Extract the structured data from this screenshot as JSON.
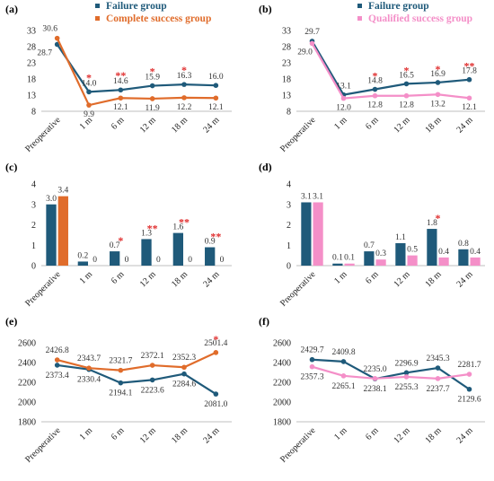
{
  "colors": {
    "failure": "#1f5a7a",
    "complete": "#e06c2b",
    "qualified": "#f48fc8",
    "star": "#e03030",
    "axis": "#bfbfbf"
  },
  "chart_data": [
    {
      "id": "a",
      "panel_label": "(a)",
      "type": "line",
      "categories": [
        "Preoperative",
        "1 m",
        "6 m",
        "12 m",
        "18 m",
        "24 m"
      ],
      "ylim": [
        8,
        33
      ],
      "yticks": [
        8,
        13,
        18,
        23,
        28,
        33
      ],
      "legend": [
        "Failure group",
        "Complete success group"
      ],
      "stars": [
        "",
        "*",
        "**",
        "*",
        "*",
        ""
      ],
      "series": [
        {
          "name": "Failure group",
          "color": "#1f5a7a",
          "values": [
            28.7,
            14.0,
            14.6,
            15.9,
            16.3,
            16.0
          ],
          "labels": [
            "28.7",
            "14.0",
            "14.6",
            "15.9",
            "16.3",
            "16.0"
          ]
        },
        {
          "name": "Complete success group",
          "color": "#e06c2b",
          "values": [
            30.6,
            9.9,
            12.1,
            11.9,
            12.2,
            12.1
          ],
          "labels": [
            "30.6",
            "9.9",
            "12.1",
            "11.9",
            "12.2",
            "12.1"
          ]
        }
      ]
    },
    {
      "id": "b",
      "panel_label": "(b)",
      "type": "line",
      "categories": [
        "Preoperative",
        "1 m",
        "6 m",
        "12 m",
        "18 m",
        "24 m"
      ],
      "ylim": [
        8,
        33
      ],
      "yticks": [
        8,
        13,
        18,
        23,
        28,
        33
      ],
      "legend": [
        "Failure group",
        "Qualified success group"
      ],
      "stars": [
        "",
        "",
        "*",
        "*",
        "*",
        "**"
      ],
      "series": [
        {
          "name": "Failure group",
          "color": "#1f5a7a",
          "values": [
            29.7,
            13.1,
            14.8,
            16.5,
            16.9,
            17.8
          ],
          "labels": [
            "29.7",
            "13.1",
            "14.8",
            "16.5",
            "16.9",
            "17.8"
          ]
        },
        {
          "name": "Qualified success group",
          "color": "#f48fc8",
          "values": [
            29.0,
            12.0,
            12.8,
            12.8,
            13.2,
            12.1
          ],
          "labels": [
            "29.0",
            "12.0",
            "12.8",
            "12.8",
            "13.2",
            "12.1"
          ]
        }
      ]
    },
    {
      "id": "c",
      "panel_label": "(c)",
      "type": "bar",
      "categories": [
        "Preoperative",
        "1 m",
        "6 m",
        "12 m",
        "18 m",
        "24 m"
      ],
      "ylim": [
        0,
        4
      ],
      "yticks": [
        0,
        1,
        2,
        3,
        4
      ],
      "stars": [
        "",
        "",
        "*",
        "**",
        "**",
        "**"
      ],
      "series": [
        {
          "name": "Failure group",
          "color": "#1f5a7a",
          "values": [
            3.0,
            0.2,
            0.7,
            1.3,
            1.6,
            0.9
          ],
          "labels": [
            "3.0",
            "0.2",
            "0.7",
            "1.3",
            "1.6",
            "0.9"
          ]
        },
        {
          "name": "Complete success group",
          "color": "#e06c2b",
          "values": [
            3.4,
            0,
            0,
            0,
            0,
            0
          ],
          "labels": [
            "3.4",
            "0",
            "0",
            "0",
            "0",
            "0"
          ]
        }
      ]
    },
    {
      "id": "d",
      "panel_label": "(d)",
      "type": "bar",
      "categories": [
        "Preoperative",
        "1 m",
        "6 m",
        "12 m",
        "18 m",
        "24 m"
      ],
      "ylim": [
        0,
        4
      ],
      "yticks": [
        0,
        1,
        2,
        3,
        4
      ],
      "stars": [
        "",
        "",
        "",
        "",
        "*",
        ""
      ],
      "series": [
        {
          "name": "Failure group",
          "color": "#1f5a7a",
          "values": [
            3.1,
            0.1,
            0.7,
            1.1,
            1.8,
            0.8
          ],
          "labels": [
            "3.1",
            "0.1",
            "0.7",
            "1.1",
            "1.8",
            "0.8"
          ]
        },
        {
          "name": "Qualified success group",
          "color": "#f48fc8",
          "values": [
            3.1,
            0.1,
            0.3,
            0.5,
            0.4,
            0.4
          ],
          "labels": [
            "3.1",
            "0.1",
            "0.3",
            "0.5",
            "0.4",
            "0.4"
          ]
        }
      ]
    },
    {
      "id": "e",
      "panel_label": "(e)",
      "type": "line",
      "categories": [
        "Preoperative",
        "1 m",
        "6 m",
        "12 m",
        "18 m",
        "24 m"
      ],
      "ylim": [
        1800,
        2600
      ],
      "yticks": [
        1800,
        2000,
        2200,
        2400,
        2600
      ],
      "stars": [
        "",
        "",
        "",
        "",
        "",
        "*"
      ],
      "series": [
        {
          "name": "Failure group",
          "color": "#1f5a7a",
          "values": [
            2373.4,
            2330.4,
            2194.1,
            2223.6,
            2284.6,
            2081.0
          ],
          "labels": [
            "2373.4",
            "2330.4",
            "2194.1",
            "2223.6",
            "2284.6",
            "2081.0"
          ]
        },
        {
          "name": "Complete success group",
          "color": "#e06c2b",
          "values": [
            2426.8,
            2343.7,
            2321.7,
            2372.1,
            2352.3,
            2501.4
          ],
          "labels": [
            "2426.8",
            "2343.7",
            "2321.7",
            "2372.1",
            "2352.3",
            "2501.4"
          ]
        }
      ]
    },
    {
      "id": "f",
      "panel_label": "(f)",
      "type": "line",
      "categories": [
        "Preoperative",
        "1 m",
        "6 m",
        "12 m",
        "18 m",
        "24 m"
      ],
      "ylim": [
        1800,
        2600
      ],
      "yticks": [
        1800,
        2000,
        2200,
        2400,
        2600
      ],
      "stars": [
        "",
        "",
        "",
        "",
        "",
        ""
      ],
      "series": [
        {
          "name": "Failure group",
          "color": "#1f5a7a",
          "values": [
            2429.7,
            2409.8,
            2235.0,
            2296.9,
            2345.3,
            2129.6
          ],
          "labels": [
            "2429.7",
            "2409.8",
            "2235.0",
            "2296.9",
            "2345.3",
            "2129.6"
          ]
        },
        {
          "name": "Qualified success group",
          "color": "#f48fc8",
          "values": [
            2357.3,
            2265.1,
            2238.1,
            2255.3,
            2237.7,
            2281.7
          ],
          "labels": [
            "2357.3",
            "2265.1",
            "2238.1",
            "2255.3",
            "2237.7",
            "2281.7"
          ]
        }
      ]
    }
  ]
}
